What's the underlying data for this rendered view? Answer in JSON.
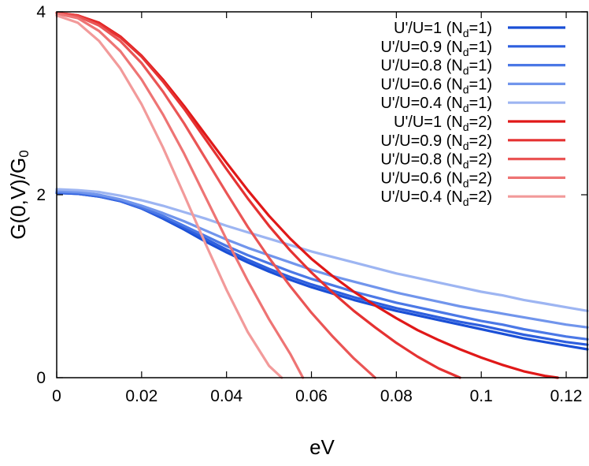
{
  "chart_data": {
    "type": "line",
    "title": "",
    "xlabel": "eV",
    "ylabel": "G(0,V)/G",
    "ylabel_subscript": "0",
    "xlim": [
      0,
      0.125
    ],
    "ylim": [
      0,
      4
    ],
    "xticks": [
      0,
      0.02,
      0.04,
      0.06,
      0.08,
      0.1,
      0.12
    ],
    "xtick_labels": [
      "0",
      "0.02",
      "0.04",
      "0.06",
      "0.08",
      "0.1",
      "0.12"
    ],
    "yticks": [
      0,
      2,
      4
    ],
    "ytick_labels": [
      "0",
      "2",
      "4"
    ],
    "grid": false,
    "legend_position": "top-right",
    "series": [
      {
        "name": "U'/U=1 (Nd=1)",
        "label_main": "U'/U=1 (N",
        "label_sub": "d",
        "label_end": "=1)",
        "color": "#1a4fd6",
        "x": [
          0,
          0.005,
          0.01,
          0.015,
          0.02,
          0.025,
          0.03,
          0.035,
          0.04,
          0.045,
          0.05,
          0.055,
          0.06,
          0.065,
          0.07,
          0.075,
          0.08,
          0.085,
          0.09,
          0.095,
          0.1,
          0.105,
          0.11,
          0.115,
          0.12,
          0.125
        ],
        "y": [
          2.02,
          2.01,
          1.98,
          1.93,
          1.85,
          1.74,
          1.62,
          1.49,
          1.37,
          1.26,
          1.16,
          1.07,
          0.99,
          0.92,
          0.85,
          0.79,
          0.73,
          0.68,
          0.63,
          0.58,
          0.53,
          0.48,
          0.43,
          0.39,
          0.35,
          0.31
        ]
      },
      {
        "name": "U'/U=0.9 (Nd=1)",
        "label_main": "U'/U=0.9 (N",
        "label_sub": "d",
        "label_end": "=1)",
        "color": "#2e5fde",
        "x": [
          0,
          0.005,
          0.01,
          0.015,
          0.02,
          0.025,
          0.03,
          0.035,
          0.04,
          0.045,
          0.05,
          0.055,
          0.06,
          0.065,
          0.07,
          0.075,
          0.08,
          0.085,
          0.09,
          0.095,
          0.1,
          0.105,
          0.11,
          0.115,
          0.12,
          0.125
        ],
        "y": [
          2.02,
          2.01,
          1.98,
          1.93,
          1.85,
          1.75,
          1.64,
          1.52,
          1.4,
          1.29,
          1.19,
          1.1,
          1.02,
          0.95,
          0.88,
          0.82,
          0.76,
          0.71,
          0.66,
          0.61,
          0.57,
          0.52,
          0.47,
          0.43,
          0.39,
          0.36
        ]
      },
      {
        "name": "U'/U=0.8 (Nd=1)",
        "label_main": "U'/U=0.8 (N",
        "label_sub": "d",
        "label_end": "=1)",
        "color": "#4b78e6",
        "x": [
          0,
          0.005,
          0.01,
          0.015,
          0.02,
          0.025,
          0.03,
          0.035,
          0.04,
          0.045,
          0.05,
          0.055,
          0.06,
          0.065,
          0.07,
          0.075,
          0.08,
          0.085,
          0.09,
          0.095,
          0.1,
          0.105,
          0.11,
          0.115,
          0.12,
          0.125
        ],
        "y": [
          2.03,
          2.02,
          1.99,
          1.94,
          1.86,
          1.77,
          1.66,
          1.55,
          1.44,
          1.34,
          1.25,
          1.16,
          1.08,
          1.01,
          0.94,
          0.88,
          0.82,
          0.77,
          0.72,
          0.67,
          0.62,
          0.58,
          0.53,
          0.49,
          0.45,
          0.42
        ]
      },
      {
        "name": "U'/U=0.6 (Nd=1)",
        "label_main": "U'/U=0.6 (N",
        "label_sub": "d",
        "label_end": "=1)",
        "color": "#7195ec",
        "x": [
          0,
          0.005,
          0.01,
          0.015,
          0.02,
          0.025,
          0.03,
          0.035,
          0.04,
          0.045,
          0.05,
          0.055,
          0.06,
          0.065,
          0.07,
          0.075,
          0.08,
          0.085,
          0.09,
          0.095,
          0.1,
          0.105,
          0.11,
          0.115,
          0.12,
          0.125
        ],
        "y": [
          2.04,
          2.03,
          2.0,
          1.95,
          1.88,
          1.8,
          1.71,
          1.61,
          1.51,
          1.42,
          1.34,
          1.26,
          1.18,
          1.11,
          1.05,
          0.99,
          0.93,
          0.88,
          0.83,
          0.78,
          0.74,
          0.7,
          0.66,
          0.62,
          0.58,
          0.55
        ]
      },
      {
        "name": "U'/U=0.4 (Nd=1)",
        "label_main": "U'/U=0.4 (N",
        "label_sub": "d",
        "label_end": "=1)",
        "color": "#9db5f2",
        "x": [
          0,
          0.005,
          0.01,
          0.015,
          0.02,
          0.025,
          0.03,
          0.035,
          0.04,
          0.045,
          0.05,
          0.055,
          0.06,
          0.065,
          0.07,
          0.075,
          0.08,
          0.085,
          0.09,
          0.095,
          0.1,
          0.105,
          0.11,
          0.115,
          0.12,
          0.125
        ],
        "y": [
          2.06,
          2.05,
          2.03,
          1.99,
          1.94,
          1.88,
          1.81,
          1.74,
          1.66,
          1.59,
          1.52,
          1.45,
          1.38,
          1.32,
          1.26,
          1.2,
          1.14,
          1.09,
          1.04,
          0.99,
          0.94,
          0.9,
          0.85,
          0.81,
          0.77,
          0.73
        ]
      },
      {
        "name": "U'/U=1 (Nd=2)",
        "label_main": "U'/U=1 (N",
        "label_sub": "d",
        "label_end": "=2)",
        "color": "#e01818",
        "x": [
          0,
          0.005,
          0.01,
          0.015,
          0.02,
          0.025,
          0.03,
          0.035,
          0.04,
          0.045,
          0.05,
          0.055,
          0.06,
          0.065,
          0.07,
          0.075,
          0.08,
          0.085,
          0.09,
          0.095,
          0.1,
          0.105,
          0.11,
          0.115,
          0.118
        ],
        "y": [
          3.99,
          3.96,
          3.88,
          3.73,
          3.52,
          3.26,
          2.97,
          2.66,
          2.35,
          2.05,
          1.77,
          1.52,
          1.3,
          1.11,
          0.94,
          0.79,
          0.65,
          0.52,
          0.41,
          0.31,
          0.22,
          0.14,
          0.07,
          0.02,
          0.0
        ]
      },
      {
        "name": "U'/U=0.9 (Nd=2)",
        "label_main": "U'/U=0.9 (N",
        "label_sub": "d",
        "label_end": "=2)",
        "color": "#e53232",
        "x": [
          0,
          0.005,
          0.01,
          0.015,
          0.02,
          0.025,
          0.03,
          0.035,
          0.04,
          0.045,
          0.05,
          0.055,
          0.06,
          0.065,
          0.07,
          0.075,
          0.08,
          0.085,
          0.09,
          0.095
        ],
        "y": [
          3.99,
          3.96,
          3.87,
          3.72,
          3.51,
          3.24,
          2.94,
          2.61,
          2.28,
          1.96,
          1.66,
          1.39,
          1.15,
          0.93,
          0.73,
          0.55,
          0.38,
          0.23,
          0.1,
          0.0
        ]
      },
      {
        "name": "U'/U=0.8 (Nd=2)",
        "label_main": "U'/U=0.8 (N",
        "label_sub": "d",
        "label_end": "=2)",
        "color": "#ea5555",
        "x": [
          0,
          0.005,
          0.01,
          0.015,
          0.02,
          0.025,
          0.03,
          0.035,
          0.04,
          0.045,
          0.05,
          0.055,
          0.06,
          0.065,
          0.07,
          0.075
        ],
        "y": [
          3.99,
          3.95,
          3.85,
          3.68,
          3.44,
          3.13,
          2.78,
          2.4,
          2.02,
          1.65,
          1.31,
          1.0,
          0.71,
          0.45,
          0.21,
          0.0
        ]
      },
      {
        "name": "U'/U=0.6 (Nd=2)",
        "label_main": "U'/U=0.6 (N",
        "label_sub": "d",
        "label_end": "=2)",
        "color": "#ee7474",
        "x": [
          0,
          0.005,
          0.01,
          0.015,
          0.02,
          0.025,
          0.03,
          0.035,
          0.04,
          0.045,
          0.05,
          0.055,
          0.058
        ],
        "y": [
          3.98,
          3.93,
          3.79,
          3.57,
          3.26,
          2.88,
          2.45,
          1.98,
          1.51,
          1.06,
          0.64,
          0.26,
          0.0
        ]
      },
      {
        "name": "U'/U=0.4 (Nd=2)",
        "label_main": "U'/U=0.4 (N",
        "label_sub": "d",
        "label_end": "=2)",
        "color": "#f29a9a",
        "x": [
          0,
          0.005,
          0.01,
          0.015,
          0.02,
          0.025,
          0.03,
          0.035,
          0.04,
          0.045,
          0.05,
          0.053
        ],
        "y": [
          3.96,
          3.88,
          3.68,
          3.38,
          2.99,
          2.52,
          2.0,
          1.47,
          0.96,
          0.5,
          0.13,
          0.0
        ]
      }
    ]
  }
}
